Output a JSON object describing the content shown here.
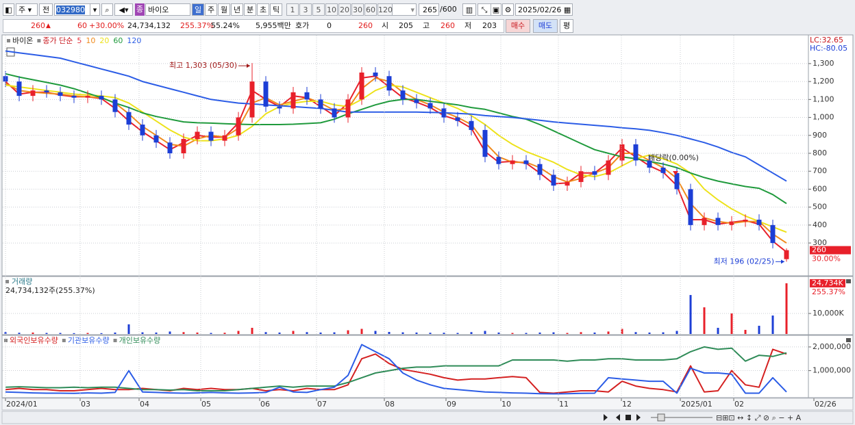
{
  "toolbar": {
    "kind": "주",
    "scope": "전",
    "code": "032980",
    "badge": "종",
    "name": "바이오",
    "periods": [
      "일",
      "주",
      "월",
      "년",
      "분",
      "초",
      "틱"
    ],
    "intervals": [
      "1",
      "3",
      "5",
      "10",
      "20",
      "30",
      "60",
      "120"
    ],
    "count": "265",
    "count_max": "/600",
    "date": "2025/02/26"
  },
  "info_bar": {
    "price": "260",
    "change": "60",
    "change_rate": "+30.00%",
    "volume": "24,734,132",
    "volume_ratio": "255.37%",
    "turnover": "55.24%",
    "amount": "5,955백만",
    "quote_label": "호가",
    "quote": "0",
    "quote_price": "260",
    "open_label": "시",
    "open": "205",
    "high_label": "고",
    "high": "260",
    "low_label": "저",
    "low": "203",
    "buy": "매수",
    "sell": "매도",
    "avg": "평"
  },
  "chart_data": [
    {
      "type": "candlestick",
      "title": "바이온",
      "subtitle": "종가 단순",
      "up_color": "#e8202a",
      "down_color": "#1c3ed6",
      "open": [
        1230,
        1200,
        1120,
        1150,
        1140,
        1120,
        1110,
        1120,
        1100,
        1030,
        960,
        900,
        860,
        800,
        880,
        920,
        870,
        900,
        1000,
        1200,
        1060,
        1050,
        1140,
        1100,
        1050,
        1000,
        1100,
        1250,
        1230,
        1150,
        1100,
        1080,
        1050,
        1000,
        980,
        930,
        780,
        740,
        760,
        740,
        680,
        620,
        640,
        700,
        680,
        760,
        850,
        760,
        720,
        690,
        600,
        400,
        440,
        400,
        420,
        430,
        400,
        210
      ],
      "high": [
        1260,
        1230,
        1180,
        1180,
        1170,
        1150,
        1150,
        1150,
        1130,
        1060,
        990,
        930,
        890,
        910,
        950,
        950,
        930,
        1030,
        1303,
        1230,
        1090,
        1170,
        1170,
        1130,
        1080,
        1130,
        1280,
        1280,
        1260,
        1180,
        1130,
        1110,
        1080,
        1030,
        1010,
        960,
        810,
        790,
        790,
        770,
        710,
        670,
        730,
        730,
        790,
        880,
        880,
        790,
        750,
        720,
        630,
        470,
        470,
        450,
        460,
        460,
        430,
        270
      ],
      "low": [
        1170,
        1090,
        1090,
        1110,
        1090,
        1080,
        1080,
        1070,
        1000,
        930,
        870,
        830,
        770,
        770,
        850,
        840,
        840,
        870,
        970,
        1030,
        1020,
        1020,
        1070,
        1020,
        970,
        970,
        1070,
        1200,
        1120,
        1070,
        1050,
        1020,
        970,
        950,
        900,
        750,
        710,
        710,
        710,
        650,
        590,
        590,
        610,
        650,
        650,
        730,
        730,
        690,
        660,
        570,
        370,
        370,
        370,
        370,
        390,
        370,
        270,
        196
      ],
      "close": [
        1200,
        1120,
        1150,
        1140,
        1120,
        1110,
        1120,
        1100,
        1030,
        960,
        900,
        860,
        800,
        880,
        920,
        870,
        900,
        1000,
        1200,
        1060,
        1050,
        1140,
        1100,
        1050,
        1000,
        1100,
        1250,
        1230,
        1150,
        1100,
        1080,
        1050,
        1000,
        980,
        930,
        780,
        740,
        760,
        740,
        680,
        620,
        640,
        700,
        680,
        760,
        850,
        760,
        720,
        690,
        600,
        400,
        440,
        400,
        420,
        430,
        400,
        300,
        260
      ],
      "series": [
        {
          "name": "5",
          "color": "#e8202a",
          "values": [
            1200,
            1130,
            1140,
            1140,
            1125,
            1115,
            1115,
            1105,
            1050,
            980,
            920,
            870,
            820,
            860,
            900,
            890,
            890,
            970,
            1150,
            1100,
            1060,
            1120,
            1110,
            1060,
            1010,
            1080,
            1220,
            1230,
            1170,
            1110,
            1085,
            1055,
            1010,
            985,
            940,
            810,
            750,
            755,
            745,
            690,
            630,
            635,
            690,
            690,
            750,
            830,
            780,
            730,
            695,
            620,
            430,
            430,
            405,
            415,
            425,
            405,
            310,
            250
          ]
        },
        {
          "name": "10",
          "color": "#f08a1c",
          "values": [
            1190,
            1150,
            1140,
            1135,
            1130,
            1120,
            1115,
            1110,
            1080,
            1020,
            950,
            900,
            850,
            840,
            880,
            900,
            890,
            940,
            1080,
            1110,
            1070,
            1090,
            1110,
            1080,
            1040,
            1050,
            1160,
            1220,
            1200,
            1140,
            1100,
            1070,
            1030,
            1000,
            960,
            860,
            780,
            750,
            750,
            720,
            670,
            640,
            660,
            690,
            720,
            800,
            800,
            760,
            720,
            660,
            520,
            440,
            420,
            410,
            420,
            420,
            350,
            300
          ]
        },
        {
          "name": "20",
          "color": "#ede21a",
          "values": [
            1180,
            1170,
            1160,
            1150,
            1140,
            1130,
            1125,
            1120,
            1110,
            1080,
            1030,
            980,
            930,
            890,
            870,
            870,
            880,
            900,
            950,
            1020,
            1060,
            1080,
            1090,
            1090,
            1070,
            1060,
            1100,
            1150,
            1180,
            1170,
            1140,
            1110,
            1080,
            1050,
            1010,
            960,
            900,
            850,
            810,
            780,
            750,
            710,
            680,
            670,
            690,
            730,
            770,
            790,
            770,
            740,
            690,
            600,
            540,
            490,
            450,
            420,
            390,
            360
          ]
        },
        {
          "name": "60",
          "color": "#1f9a3c",
          "values": [
            1243,
            1225,
            1210,
            1195,
            1180,
            1160,
            1135,
            1110,
            1080,
            1055,
            1025,
            1005,
            990,
            975,
            970,
            968,
            965,
            962,
            960,
            960,
            960,
            962,
            966,
            970,
            990,
            1020,
            1045,
            1070,
            1090,
            1100,
            1100,
            1090,
            1080,
            1070,
            1055,
            1045,
            1025,
            1005,
            990,
            960,
            925,
            890,
            855,
            820,
            800,
            780,
            770,
            755,
            740,
            720,
            690,
            665,
            645,
            630,
            615,
            605,
            570,
            520
          ]
        },
        {
          "name": "120",
          "color": "#2b5ce6",
          "values": [
            1370,
            1360,
            1350,
            1340,
            1330,
            1310,
            1290,
            1270,
            1250,
            1230,
            1200,
            1180,
            1160,
            1140,
            1120,
            1100,
            1090,
            1080,
            1075,
            1070,
            1065,
            1060,
            1055,
            1050,
            1040,
            1030,
            1030,
            1030,
            1030,
            1030,
            1030,
            1028,
            1026,
            1022,
            1018,
            1010,
            1005,
            1000,
            992,
            984,
            975,
            968,
            962,
            956,
            950,
            942,
            936,
            928,
            915,
            900,
            880,
            860,
            835,
            805,
            780,
            735,
            690,
            645
          ]
        }
      ],
      "xlim": [
        -0.2,
        58.6
      ],
      "ylim": [
        121,
        1456
      ],
      "yticks": [
        {
          "value": 1300,
          "label": "1,300"
        },
        {
          "value": 1200,
          "label": "1,200"
        },
        {
          "value": 1100,
          "label": "1,100"
        },
        {
          "value": 1000,
          "label": "1,000"
        },
        900,
        800,
        700,
        600,
        500,
        400,
        300
      ],
      "grid": true,
      "annotations": {
        "high": "최고 1,303 (05/30)",
        "low": "최저 196 (02/25)",
        "ex_dividend": "배당락(0.00%)"
      },
      "lc_label": "LC:32.65",
      "hc_label": "HC:-80.05",
      "last_price": 260,
      "last_change": "30.00%"
    },
    {
      "type": "bar",
      "title": "거래량",
      "subtitle": "24,734,132주(255.37%)",
      "up_color": "#e8202a",
      "down_color": "#1c3ed6",
      "values": [
        900,
        600,
        700,
        500,
        500,
        400,
        500,
        400,
        700,
        4700,
        800,
        700,
        1200,
        900,
        700,
        500,
        600,
        1500,
        3000,
        900,
        700,
        1500,
        900,
        700,
        800,
        1800,
        2500,
        1500,
        1000,
        800,
        700,
        600,
        600,
        500,
        900,
        1500,
        700,
        500,
        500,
        700,
        800,
        500,
        900,
        700,
        1200,
        2500,
        900,
        700,
        800,
        1500,
        19000,
        13000,
        3000,
        10000,
        2000,
        4000,
        9000,
        24734
      ],
      "xlim": [
        -0.2,
        58.6
      ],
      "ylim": [
        0,
        27700
      ],
      "yticks": [
        {
          "value": 10000,
          "label": "10,000K"
        }
      ],
      "last_label": "24,734K",
      "last_change": "255.37%"
    },
    {
      "type": "line",
      "series": [
        {
          "name": "외국인보유수량",
          "color": "#d42020",
          "values": [
            200000,
            250000,
            200000,
            200000,
            150000,
            150000,
            200000,
            250000,
            200000,
            200000,
            250000,
            200000,
            150000,
            250000,
            200000,
            250000,
            200000,
            200000,
            250000,
            150000,
            200000,
            150000,
            250000,
            200000,
            200000,
            400000,
            1500000,
            1700000,
            1300000,
            1050000,
            950000,
            850000,
            700000,
            600000,
            650000,
            650000,
            700000,
            750000,
            700000,
            80000,
            50000,
            100000,
            150000,
            150000,
            100000,
            550000,
            350000,
            250000,
            200000,
            100000,
            1200000,
            100000,
            150000,
            1000000,
            400000,
            300000,
            1900000,
            1700000
          ]
        },
        {
          "name": "기관보유수량",
          "color": "#2b5ce6",
          "values": [
            100000,
            80000,
            60000,
            50000,
            50000,
            40000,
            60000,
            50000,
            80000,
            1000000,
            100000,
            80000,
            60000,
            50000,
            60000,
            80000,
            60000,
            50000,
            60000,
            80000,
            300000,
            100000,
            80000,
            200000,
            300000,
            800000,
            2100000,
            1800000,
            1500000,
            900000,
            600000,
            400000,
            250000,
            200000,
            150000,
            100000,
            80000,
            60000,
            50000,
            30000,
            20000,
            30000,
            40000,
            50000,
            700000,
            650000,
            600000,
            550000,
            550000,
            50000,
            1100000,
            900000,
            900000,
            850000,
            50000,
            50000,
            700000,
            100000
          ]
        },
        {
          "name": "개인보유수량",
          "color": "#2e8b57",
          "values": [
            300000,
            320000,
            300000,
            280000,
            280000,
            300000,
            280000,
            300000,
            300000,
            250000,
            200000,
            200000,
            180000,
            200000,
            150000,
            150000,
            150000,
            200000,
            250000,
            300000,
            350000,
            300000,
            350000,
            350000,
            350000,
            500000,
            700000,
            900000,
            1000000,
            1100000,
            1150000,
            1150000,
            1200000,
            1200000,
            1200000,
            1200000,
            1200000,
            1450000,
            1450000,
            1450000,
            1450000,
            1400000,
            1450000,
            1450000,
            1500000,
            1500000,
            1450000,
            1450000,
            1450000,
            1500000,
            1800000,
            2000000,
            1900000,
            1950000,
            1400000,
            1650000,
            1600000,
            1750000
          ]
        }
      ],
      "xlim": [
        -0.2,
        58.6
      ],
      "ylim": [
        -110000,
        2460000
      ],
      "yticks": [
        {
          "value": 2000000,
          "label": "2,000,000"
        },
        {
          "value": 1000000,
          "label": "1,000,000"
        }
      ],
      "xticks": [
        {
          "value": 0,
          "label": "2024/01"
        },
        {
          "value": 5.45,
          "label": "03"
        },
        {
          "value": 9.75,
          "label": "04"
        },
        {
          "value": 14.25,
          "label": "05"
        },
        {
          "value": 18.55,
          "label": "06"
        },
        {
          "value": 22.7,
          "label": "07"
        },
        {
          "value": 27.65,
          "label": "08"
        },
        {
          "value": 32.15,
          "label": "09"
        },
        {
          "value": 36.15,
          "label": "10"
        },
        {
          "value": 40.35,
          "label": "11"
        },
        {
          "value": 44.95,
          "label": "12"
        },
        {
          "value": 49.25,
          "label": "2025/01"
        },
        {
          "value": 53.15,
          "label": "02"
        },
        {
          "value": 59,
          "label": "02/26"
        }
      ],
      "grid": true
    }
  ]
}
